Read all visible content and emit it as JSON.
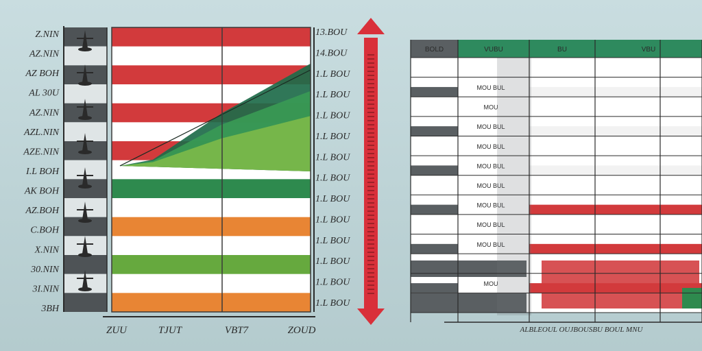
{
  "chart_data": [
    {
      "type": "bar",
      "title": "",
      "orientation": "horizontal-bands",
      "left_labels": [
        "Z.NIN",
        "AZ.NIN",
        "AZ BOH",
        "AL 30U",
        "AZ.NIN",
        "AZL.NIN",
        "AZE.NIN",
        "I.L BOH",
        "AK BOH",
        "AZ.BOH",
        "C.BOH",
        "X.NIN",
        "30.NIN",
        "3I.NIN",
        "3BH"
      ],
      "right_labels": [
        "13.BOU",
        "14.BOU",
        "1.L BOU",
        "1.L BOU",
        "1.L BOU",
        "1.L BOU",
        "1.L BOU",
        "1.L BOU",
        "1.L BOU",
        "1.L BOU",
        "1.L BOU",
        "1.L BOU",
        "1.L BOU",
        "1.L BOU"
      ],
      "x_labels": [
        "ZUU",
        "TJUT",
        "VBT7",
        "ZOUD"
      ],
      "band_colors": [
        "#d23a3c",
        "#ffffff",
        "#d23a3c",
        "#ffffff",
        "#d23a3c",
        "#ffffff",
        "#d23a3c",
        "#ffffff",
        "#2e8a4e",
        "#ffffff",
        "#e88534",
        "#ffffff",
        "#66a93e",
        "#ffffff",
        "#e88534"
      ],
      "area_series": [
        {
          "color": "#1e6b4a",
          "values": [
            0,
            0.05,
            0.42,
            0.82
          ]
        },
        {
          "color": "#3a9a55",
          "values": [
            0,
            0.04,
            0.33,
            0.6
          ]
        },
        {
          "color": "#7cb84a",
          "values": [
            0,
            0.03,
            0.22,
            0.4
          ]
        }
      ]
    },
    {
      "type": "table",
      "header": [
        "BOLD",
        "VUBU",
        "BU",
        "VBU"
      ],
      "header_colors": [
        "#5a5f62",
        "#2e8a5e",
        "#2e8a5e",
        "#2e8a5e"
      ],
      "row_labels": [
        "",
        "MOU BUL",
        "MOU",
        "MOU BUL",
        "MOU BUL",
        "MOU BUL",
        "MOU BUL",
        "MOU BUL",
        "MOU BUL",
        "MOU BUL",
        "MOU",
        "MOU",
        "MOU"
      ],
      "x_label": "ALBLEOUL OUJBOUSBU BOUL MNU"
    }
  ],
  "arrow": {
    "color": "#d9303a"
  },
  "colors": {
    "red": "#d23a3c",
    "green": "#2e8a4e",
    "orange": "#e88534",
    "dark": "#5a5f62"
  }
}
